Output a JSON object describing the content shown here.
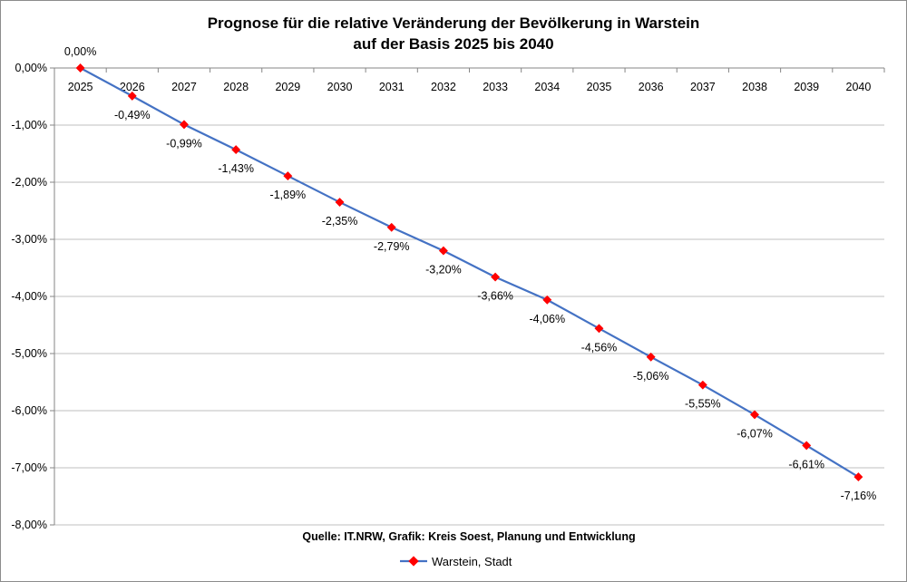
{
  "chart_data": {
    "type": "line",
    "title": [
      "Prognose für die relative Veränderung der Bevölkerung in Warstein",
      "auf der Basis 2025 bis 2040"
    ],
    "categories": [
      "2025",
      "2026",
      "2027",
      "2028",
      "2029",
      "2030",
      "2031",
      "2032",
      "2033",
      "2034",
      "2035",
      "2036",
      "2037",
      "2038",
      "2039",
      "2040"
    ],
    "series": [
      {
        "name": "Warstein, Stadt",
        "values": [
          0.0,
          -0.49,
          -0.99,
          -1.43,
          -1.89,
          -2.35,
          -2.79,
          -3.2,
          -3.66,
          -4.06,
          -4.56,
          -5.06,
          -5.55,
          -6.07,
          -6.61,
          -7.16
        ],
        "labels": [
          "0,00%",
          "-0,49%",
          "-0,99%",
          "-1,43%",
          "-1,89%",
          "-2,35%",
          "-2,79%",
          "-3,20%",
          "-3,66%",
          "-4,06%",
          "-4,56%",
          "-5,06%",
          "-5,55%",
          "-6,07%",
          "-6,61%",
          "-7,16%"
        ],
        "line_color": "#4472c4",
        "marker_color": "#ff0000",
        "marker": "diamond"
      }
    ],
    "ylim": [
      -8,
      0
    ],
    "yticks": [
      0,
      -1,
      -2,
      -3,
      -4,
      -5,
      -6,
      -7,
      -8
    ],
    "ytick_labels": [
      "0,00%",
      "-1,00%",
      "-2,00%",
      "-3,00%",
      "-4,00%",
      "-5,00%",
      "-6,00%",
      "-7,00%",
      "-8,00%"
    ],
    "grid": true,
    "legend": "bottom",
    "source_note": "Quelle: IT.NRW, Grafik: Kreis Soest, Planung und Entwicklung"
  }
}
